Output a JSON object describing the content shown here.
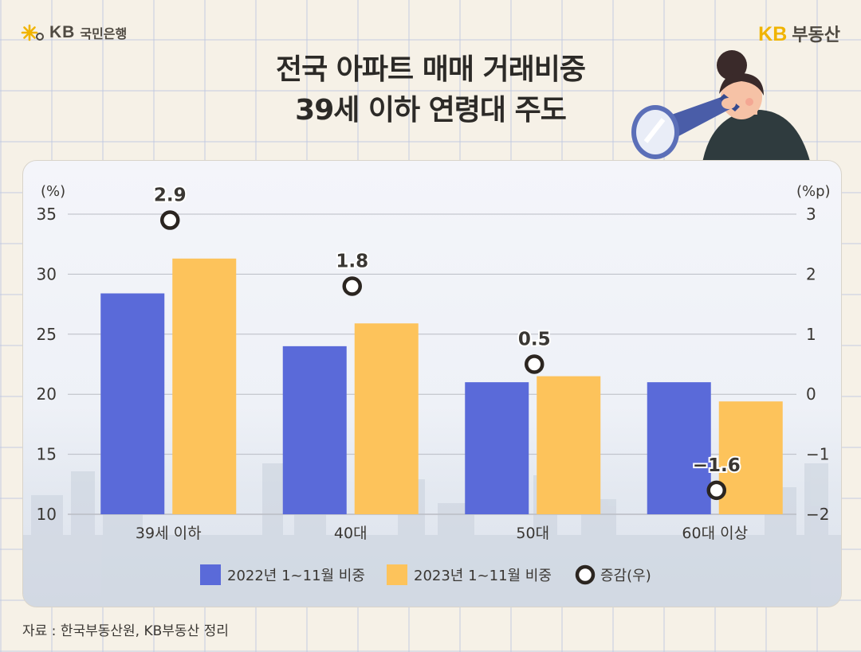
{
  "brand": {
    "bank_mark": "KB",
    "bank_name": "국민은행",
    "realty_mark": "KB",
    "realty_name": "부동산"
  },
  "title_line1": "전국 아파트 매매 거래비중",
  "title_line2": "39세 이하 연령대 주도",
  "source": "자료 : 한국부동산원, KB부동산 정리",
  "colors": {
    "series_2022": "#5a6ad9",
    "series_2023": "#fdc35b",
    "change_marker": "#2b2520"
  },
  "chart_data": {
    "type": "bar",
    "categories": [
      "39세 이하",
      "40대",
      "50대",
      "60대 이상"
    ],
    "series": [
      {
        "name": "2022년 1~11월 비중",
        "axis": "left",
        "values": [
          28.4,
          24.0,
          21.0,
          21.0
        ]
      },
      {
        "name": "2023년 1~11월 비중",
        "axis": "left",
        "values": [
          31.3,
          25.9,
          21.5,
          19.4
        ]
      },
      {
        "name": "증감(우)",
        "axis": "right",
        "type": "scatter",
        "values": [
          2.9,
          1.8,
          0.5,
          -1.6
        ]
      }
    ],
    "value_labels": [
      "2.9",
      "1.8",
      "0.5",
      "−1.6"
    ],
    "ylabel_left": "(%)",
    "ylabel_right": "(%p)",
    "ylim_left": [
      10,
      35
    ],
    "ylim_right": [
      -2,
      3
    ],
    "yticks_left": [
      "35",
      "30",
      "25",
      "20",
      "15",
      "10"
    ],
    "yticks_right": [
      "3",
      "2",
      "1",
      "0",
      "−1",
      "−2"
    ],
    "grid": true,
    "legend_position": "bottom"
  }
}
